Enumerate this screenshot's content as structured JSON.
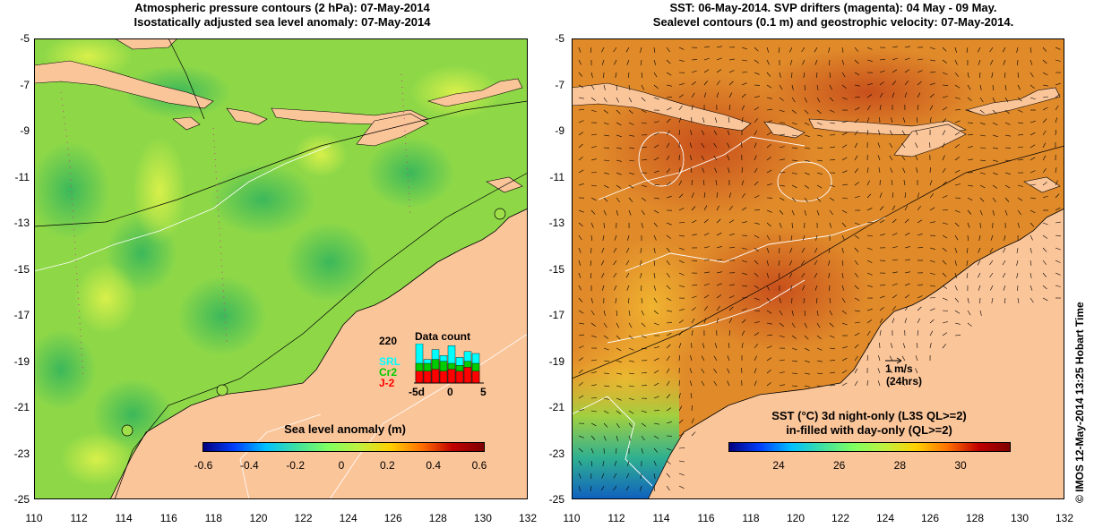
{
  "left_panel": {
    "title_line1": "Atmospheric pressure contours (2 hPa): 07-May-2014",
    "title_line2": "Isostatically adjusted sea level anomaly: 07-May-2014",
    "colorbar_title": "Sea level anomaly (m)",
    "colorbar_ticks": [
      "-0.6",
      "-0.4",
      "-0.2",
      "0",
      "0.2",
      "0.4",
      "0.6"
    ],
    "data_count": {
      "title": "Data count",
      "max_label": "220",
      "series": [
        {
          "name": "SRL",
          "color": "#00ffff"
        },
        {
          "name": "Cr2",
          "color": "#00cc00"
        },
        {
          "name": "J-2",
          "color": "#ff0000"
        }
      ],
      "x_ticks": [
        "-5d",
        "0",
        "5"
      ],
      "values": [
        {
          "cyan": 1.0,
          "green": 0.5,
          "red": 0.3
        },
        {
          "cyan": 0.6,
          "green": 0.5,
          "red": 0.3
        },
        {
          "cyan": 0.85,
          "green": 0.6,
          "red": 0.35
        },
        {
          "cyan": 0.7,
          "green": 0.55,
          "red": 0.3
        },
        {
          "cyan": 0.95,
          "green": 0.5,
          "red": 0.35
        },
        {
          "cyan": 0.65,
          "green": 0.45,
          "red": 0.3
        },
        {
          "cyan": 0.8,
          "green": 0.55,
          "red": 0.4
        },
        {
          "cyan": 0.75,
          "green": 0.5,
          "red": 0.3
        }
      ]
    }
  },
  "right_panel": {
    "title_line1": "SST: 06-May-2014. SVP drifters (magenta): 04 May - 09 May.",
    "title_line2": "Sealevel contours (0.1 m) and geostrophic velocity: 07-May-2014.",
    "colorbar_title_line1": "SST (°C)  3d night-only (L3S QL>=2)",
    "colorbar_title_line2": "in-filled with day-only (QL>=2)",
    "colorbar_ticks": [
      "24",
      "26",
      "28",
      "30"
    ],
    "velocity_scale": "1 m/s",
    "velocity_scale_note": "(24hrs)"
  },
  "axes": {
    "y_ticks": [
      "-5",
      "-7",
      "-9",
      "-11",
      "-13",
      "-15",
      "-17",
      "-19",
      "-21",
      "-23",
      "-25"
    ],
    "x_ticks": [
      "110",
      "112",
      "114",
      "116",
      "118",
      "120",
      "122",
      "124",
      "126",
      "128",
      "130",
      "132"
    ],
    "lon_range": [
      110,
      132
    ],
    "lat_range": [
      -25,
      -5
    ]
  },
  "credit": "© IMOS 12-May-2014 13:25 Hobart Time",
  "colors": {
    "land": "#fbc59a",
    "sla_main": "#9fe04a",
    "sst_main": "#e08a2a"
  }
}
